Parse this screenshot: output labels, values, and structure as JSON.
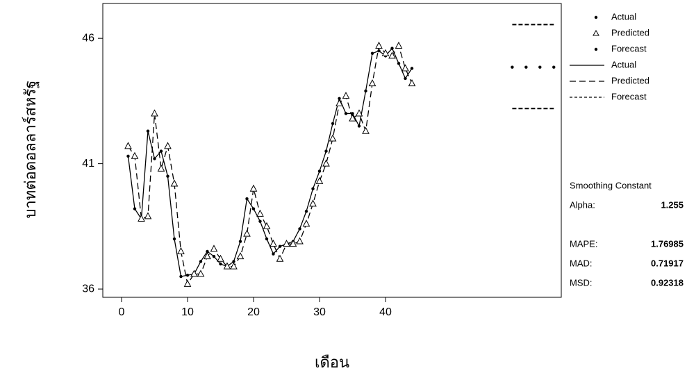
{
  "chart_data": {
    "type": "line",
    "y_label": "บาทต่อดอลลาร์สหรัฐ",
    "x_label": "เดือน",
    "xlim": [
      -2.84,
      66.63
    ],
    "ylim": [
      35.67,
      47.39
    ],
    "xticks": [
      0,
      10,
      20,
      30,
      40
    ],
    "yticks": [
      36,
      41,
      46
    ],
    "series": [
      {
        "name": "Actual",
        "color": "#000000",
        "style": "solid",
        "marker": "dot",
        "x": [
          1,
          2,
          3,
          4,
          5,
          6,
          7,
          8,
          9,
          10,
          11,
          12,
          13,
          14,
          15,
          16,
          17,
          18,
          19,
          20,
          21,
          22,
          23,
          24,
          25,
          26,
          27,
          28,
          29,
          30,
          31,
          32,
          33,
          34,
          35,
          36,
          37,
          38,
          39,
          40,
          41,
          42,
          43,
          44
        ],
        "values": [
          41.3,
          39.2,
          38.8,
          42.3,
          41.2,
          41.5,
          40.5,
          38.0,
          36.5,
          36.55,
          36.6,
          37.1,
          37.5,
          37.3,
          37.0,
          36.9,
          37.1,
          37.9,
          39.6,
          39.2,
          38.7,
          38.0,
          37.4,
          37.7,
          37.8,
          37.9,
          38.4,
          39.1,
          40.0,
          40.7,
          41.5,
          42.6,
          43.6,
          43.0,
          43.0,
          42.5,
          43.9,
          45.4,
          45.5,
          45.3,
          45.6,
          45.0,
          44.4,
          44.8
        ]
      },
      {
        "name": "Predicted",
        "color": "#000000",
        "style": "dashed",
        "marker": "triangle",
        "x": [
          1,
          2,
          3,
          4,
          5,
          6,
          7,
          8,
          9,
          10,
          11,
          12,
          13,
          14,
          15,
          16,
          17,
          18,
          19,
          20,
          21,
          22,
          23,
          24,
          25,
          26,
          27,
          28,
          29,
          30,
          31,
          32,
          33,
          34,
          35,
          36,
          37,
          38,
          39,
          40,
          41,
          42,
          43,
          44
        ],
        "values": [
          41.7,
          41.3,
          38.8,
          38.9,
          43.0,
          40.8,
          41.7,
          40.2,
          37.5,
          36.2,
          36.6,
          36.6,
          37.3,
          37.6,
          37.2,
          36.9,
          36.9,
          37.3,
          38.2,
          40.0,
          39.0,
          38.5,
          37.8,
          37.2,
          37.8,
          37.8,
          37.9,
          38.6,
          39.4,
          40.3,
          41.0,
          42.0,
          43.4,
          43.7,
          42.8,
          43.0,
          42.3,
          44.2,
          45.7,
          45.4,
          45.3,
          45.7,
          44.8,
          44.2
        ]
      },
      {
        "name": "Forecast",
        "color": "#000000",
        "style": "none",
        "marker": "dot",
        "x": [
          59.2,
          61.3,
          63.4,
          65.5
        ],
        "values": [
          44.85,
          44.85,
          44.85,
          44.85
        ],
        "lower": [
          43.2,
          43.2,
          43.2,
          43.2
        ],
        "upper": [
          46.55,
          46.55,
          46.55,
          46.55
        ]
      }
    ],
    "line_legend": [
      "Actual",
      "Predicted",
      "Forecast"
    ],
    "stats": {
      "heading": "Smoothing Constant",
      "items": [
        {
          "label": "Alpha:",
          "value": 1.255
        },
        {
          "label": "MAPE:",
          "value": 1.76985
        },
        {
          "label": "MAD:",
          "value": 0.71917
        },
        {
          "label": "MSD:",
          "value": 0.92318
        }
      ]
    }
  }
}
